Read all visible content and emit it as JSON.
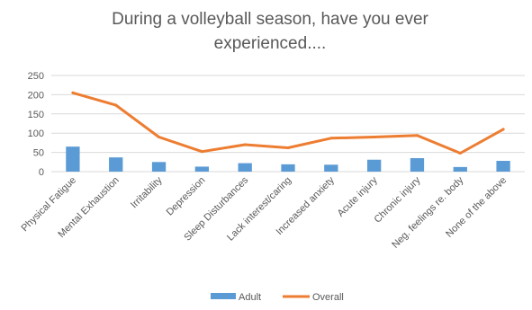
{
  "chart_data": {
    "type": "bar",
    "title_lines": [
      "During a volleyball season, have you ever",
      "experienced...."
    ],
    "categories": [
      "Physical Fatigue",
      "Mental Exhaustion",
      "Irritability",
      "Depression",
      "Sleep Disturbances",
      "Lack interest/caring",
      "Increased anxiety",
      "Acute injury",
      "Chronic injury",
      "Neg. feelings re. body",
      "None of the above"
    ],
    "series": [
      {
        "name": "Adult",
        "type": "bar",
        "color": "#5B9BD5",
        "values": [
          65,
          37,
          25,
          13,
          22,
          19,
          18,
          31,
          35,
          12,
          28
        ]
      },
      {
        "name": "Overall",
        "type": "line",
        "color": "#ED7D31",
        "values": [
          205,
          173,
          90,
          52,
          70,
          62,
          87,
          90,
          94,
          48,
          110
        ]
      }
    ],
    "ylim": [
      0,
      250
    ],
    "yticks": [
      0,
      50,
      100,
      150,
      200,
      250
    ],
    "grid": true,
    "legend_position": "bottom"
  }
}
